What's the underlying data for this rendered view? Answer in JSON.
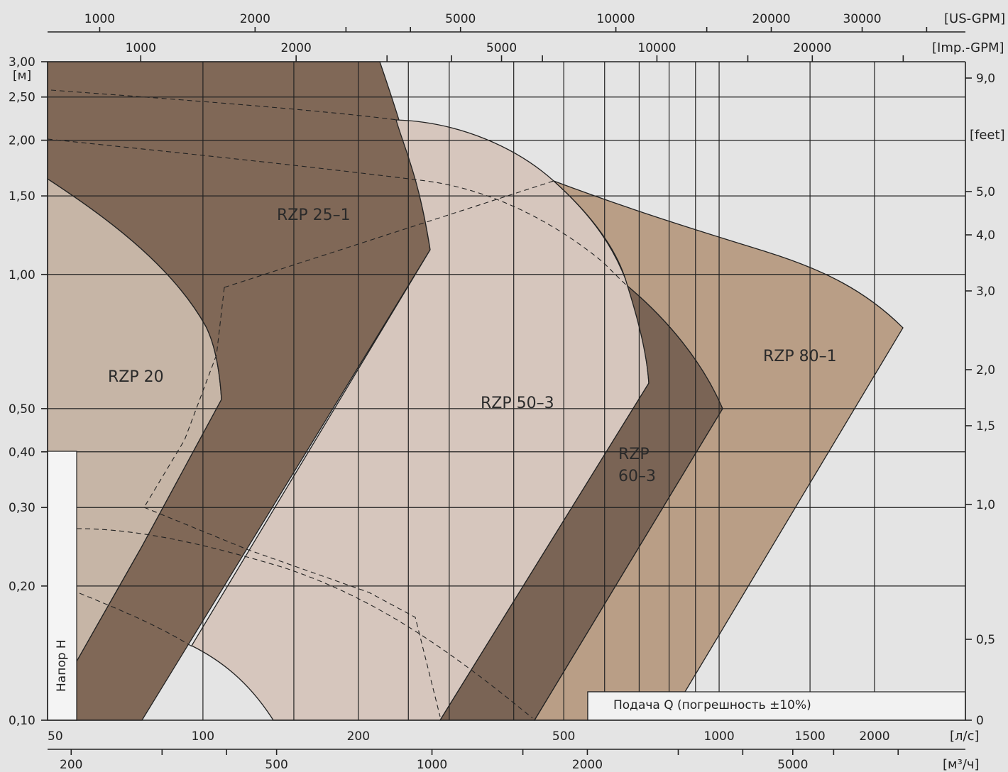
{
  "chart_data": {
    "type": "area",
    "title": "",
    "ylabel": "Напор H",
    "xlabel": "Подача Q (погрешность ±10%)",
    "x_scale": "log",
    "y_scale": "log",
    "x_unit": "[л/с]",
    "y_unit": "[м]",
    "xlim": [
      50,
      3000
    ],
    "ylim": [
      0.1,
      3.0
    ],
    "x_ticks": [
      "50",
      "100",
      "200",
      "500",
      "1000",
      "1500",
      "2000"
    ],
    "y_ticks": [
      "0,10",
      "0,20",
      "0,30",
      "0,40",
      "0,50",
      "1,00",
      "1,50",
      "2,00",
      "2,50",
      "3,00"
    ],
    "secondary_axes": {
      "us_gpm": {
        "unit": "[US-GPM]",
        "ticks": [
          "1000",
          "2000",
          "5000",
          "10000",
          "20000",
          "30000"
        ]
      },
      "imp_gpm": {
        "unit": "[Imp.-GPM]",
        "ticks": [
          "1000",
          "2000",
          "5000",
          "10000",
          "20000"
        ]
      },
      "m3h": {
        "unit": "[м³/ч]",
        "ticks": [
          "200",
          "500",
          "1000",
          "2000",
          "5000"
        ]
      },
      "feet": {
        "unit": "[feet]",
        "ticks": [
          "0",
          "0,5",
          "1,0",
          "1,5",
          "2,0",
          "3,0",
          "4,0",
          "5,0",
          "9,0"
        ]
      }
    },
    "series": [
      {
        "name": "RZP 20",
        "color": "#c6b5a6",
        "points": [
          [
            50,
            1.67
          ],
          [
            60,
            1.45
          ],
          [
            75,
            1.15
          ],
          [
            90,
            0.85
          ],
          [
            100,
            0.66
          ],
          [
            104,
            0.53
          ],
          [
            90,
            0.37
          ],
          [
            75,
            0.25
          ],
          [
            64,
            0.17
          ],
          [
            57,
            0.135
          ],
          [
            57,
            0.1
          ],
          [
            50,
            0.1
          ]
        ]
      },
      {
        "name": "RZP 25-1",
        "color": "#806857",
        "points": [
          [
            50,
            3.0
          ],
          [
            180,
            3.0
          ],
          [
            207,
            2.2
          ],
          [
            222,
            1.55
          ],
          [
            235,
            1.15
          ],
          [
            197,
            0.7
          ],
          [
            160,
            0.42
          ],
          [
            132,
            0.27
          ],
          [
            111,
            0.18
          ],
          [
            100,
            0.145
          ],
          [
            94,
            0.125
          ],
          [
            75,
            0.1
          ],
          [
            57,
            0.1
          ],
          [
            57,
            0.135
          ],
          [
            64,
            0.17
          ],
          [
            75,
            0.25
          ],
          [
            90,
            0.37
          ],
          [
            104,
            0.53
          ],
          [
            100,
            0.66
          ],
          [
            90,
            0.85
          ],
          [
            75,
            1.15
          ],
          [
            60,
            1.45
          ],
          [
            50,
            1.67
          ]
        ]
      },
      {
        "name": "RZP 50-3",
        "color": "#d6c6bd",
        "points": [
          [
            207,
            2.2
          ],
          [
            270,
            2.15
          ],
          [
            350,
            1.9
          ],
          [
            420,
            1.65
          ],
          [
            510,
            1.25
          ],
          [
            570,
            0.95
          ],
          [
            615,
            0.72
          ],
          [
            630,
            0.57
          ],
          [
            520,
            0.39
          ],
          [
            430,
            0.27
          ],
          [
            370,
            0.185
          ],
          [
            325,
            0.135
          ],
          [
            300,
            0.115
          ],
          [
            290,
            0.1
          ],
          [
            145,
            0.1
          ],
          [
            125,
            0.12
          ],
          [
            100,
            0.145
          ],
          [
            94,
            0.125
          ],
          [
            100,
            0.145
          ],
          [
            111,
            0.18
          ],
          [
            132,
            0.27
          ],
          [
            160,
            0.42
          ],
          [
            197,
            0.7
          ],
          [
            235,
            1.15
          ],
          [
            222,
            1.55
          ]
        ]
      },
      {
        "name": "RZP 60-3",
        "color": "#7a6455",
        "points": [
          [
            570,
            0.95
          ],
          [
            640,
            0.85
          ],
          [
            700,
            0.7
          ],
          [
            755,
            0.57
          ],
          [
            640,
            0.39
          ],
          [
            540,
            0.27
          ],
          [
            465,
            0.185
          ],
          [
            400,
            0.13
          ],
          [
            360,
            0.1
          ],
          [
            290,
            0.1
          ],
          [
            300,
            0.115
          ],
          [
            325,
            0.135
          ],
          [
            370,
            0.185
          ],
          [
            430,
            0.27
          ],
          [
            520,
            0.39
          ],
          [
            630,
            0.57
          ],
          [
            615,
            0.72
          ]
        ]
      },
      {
        "name": "RZP 80-1",
        "color": "#b99e86",
        "points": [
          [
            420,
            1.65
          ],
          [
            800,
            1.28
          ],
          [
            1300,
            1.05
          ],
          [
            1650,
            0.85
          ],
          [
            1950,
            0.73
          ],
          [
            1500,
            0.5
          ],
          [
            1200,
            0.31
          ],
          [
            950,
            0.19
          ],
          [
            800,
            0.13
          ],
          [
            700,
            0.1
          ],
          [
            360,
            0.1
          ],
          [
            400,
            0.13
          ],
          [
            465,
            0.185
          ],
          [
            540,
            0.27
          ],
          [
            640,
            0.39
          ],
          [
            755,
            0.57
          ],
          [
            700,
            0.7
          ],
          [
            640,
            0.85
          ],
          [
            570,
            0.95
          ]
        ]
      }
    ]
  },
  "labels": {
    "rzp20": "RZP 20",
    "rzp25": "RZP 25–1",
    "rzp50": "RZP 50–3",
    "rzp60_a": "RZP",
    "rzp60_b": "60–3",
    "rzp80": "RZP 80–1",
    "ylabel": "Напор H",
    "xlabel": "Подача Q (погрешность ±10%)"
  }
}
